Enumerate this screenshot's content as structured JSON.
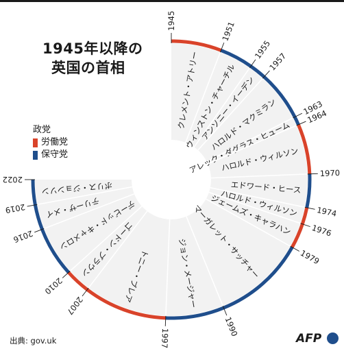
{
  "title_line1": "1945年以降の",
  "title_line2": "英国の首相",
  "legend": {
    "title": "政党",
    "items": [
      {
        "label": "労働党",
        "color": "#d9432a"
      },
      {
        "label": "保守党",
        "color": "#1f4e8c"
      }
    ]
  },
  "source": "出典: gov.uk",
  "logo_text": "AFP",
  "chart_data": {
    "type": "radial-timeline",
    "start_year": 1945,
    "end_year": 2022,
    "terms": [
      {
        "name": "クレメント・アトリー",
        "start": 1945,
        "end": 1951,
        "party": "labour"
      },
      {
        "name": "ウィンストン・チャーチル",
        "start": 1951,
        "end": 1955,
        "party": "conservative"
      },
      {
        "name": "アンソニー・イーデン",
        "start": 1955,
        "end": 1957,
        "party": "conservative"
      },
      {
        "name": "ハロルド・マクミラン",
        "start": 1957,
        "end": 1963,
        "party": "conservative"
      },
      {
        "name": "アレック・ダグラス・ヒューム",
        "start": 1963,
        "end": 1964,
        "party": "conservative"
      },
      {
        "name": "ハロルド・ウィルソン",
        "start": 1964,
        "end": 1970,
        "party": "labour"
      },
      {
        "name": "エドワード・ヒース",
        "start": 1970,
        "end": 1974,
        "party": "conservative"
      },
      {
        "name": "ハロルド・ウィルソン",
        "start": 1974,
        "end": 1976,
        "party": "labour"
      },
      {
        "name": "ジェームズ・キャラハン",
        "start": 1976,
        "end": 1979,
        "party": "labour"
      },
      {
        "name": "マーガレット・サッチャー",
        "start": 1979,
        "end": 1990,
        "party": "conservative"
      },
      {
        "name": "ジョン・メージャー",
        "start": 1990,
        "end": 1997,
        "party": "conservative"
      },
      {
        "name": "トニー・ブレア",
        "start": 1997,
        "end": 2007,
        "party": "labour"
      },
      {
        "name": "ゴードン・ブラウン",
        "start": 2007,
        "end": 2010,
        "party": "labour"
      },
      {
        "name": "デービッド・キャメロン",
        "start": 2010,
        "end": 2016,
        "party": "conservative"
      },
      {
        "name": "テリーザ・メイ",
        "start": 2016,
        "end": 2019,
        "party": "conservative"
      },
      {
        "name": "ボリス・ジョンソン",
        "start": 2019,
        "end": 2022,
        "party": "conservative"
      }
    ],
    "year_ticks": [
      "1945",
      "1951",
      "1955",
      "1957",
      "1963",
      "1964",
      "1970",
      "1974",
      "1976",
      "1979",
      "1990",
      "1997",
      "2007",
      "2010",
      "2016",
      "2019",
      "2022"
    ]
  }
}
